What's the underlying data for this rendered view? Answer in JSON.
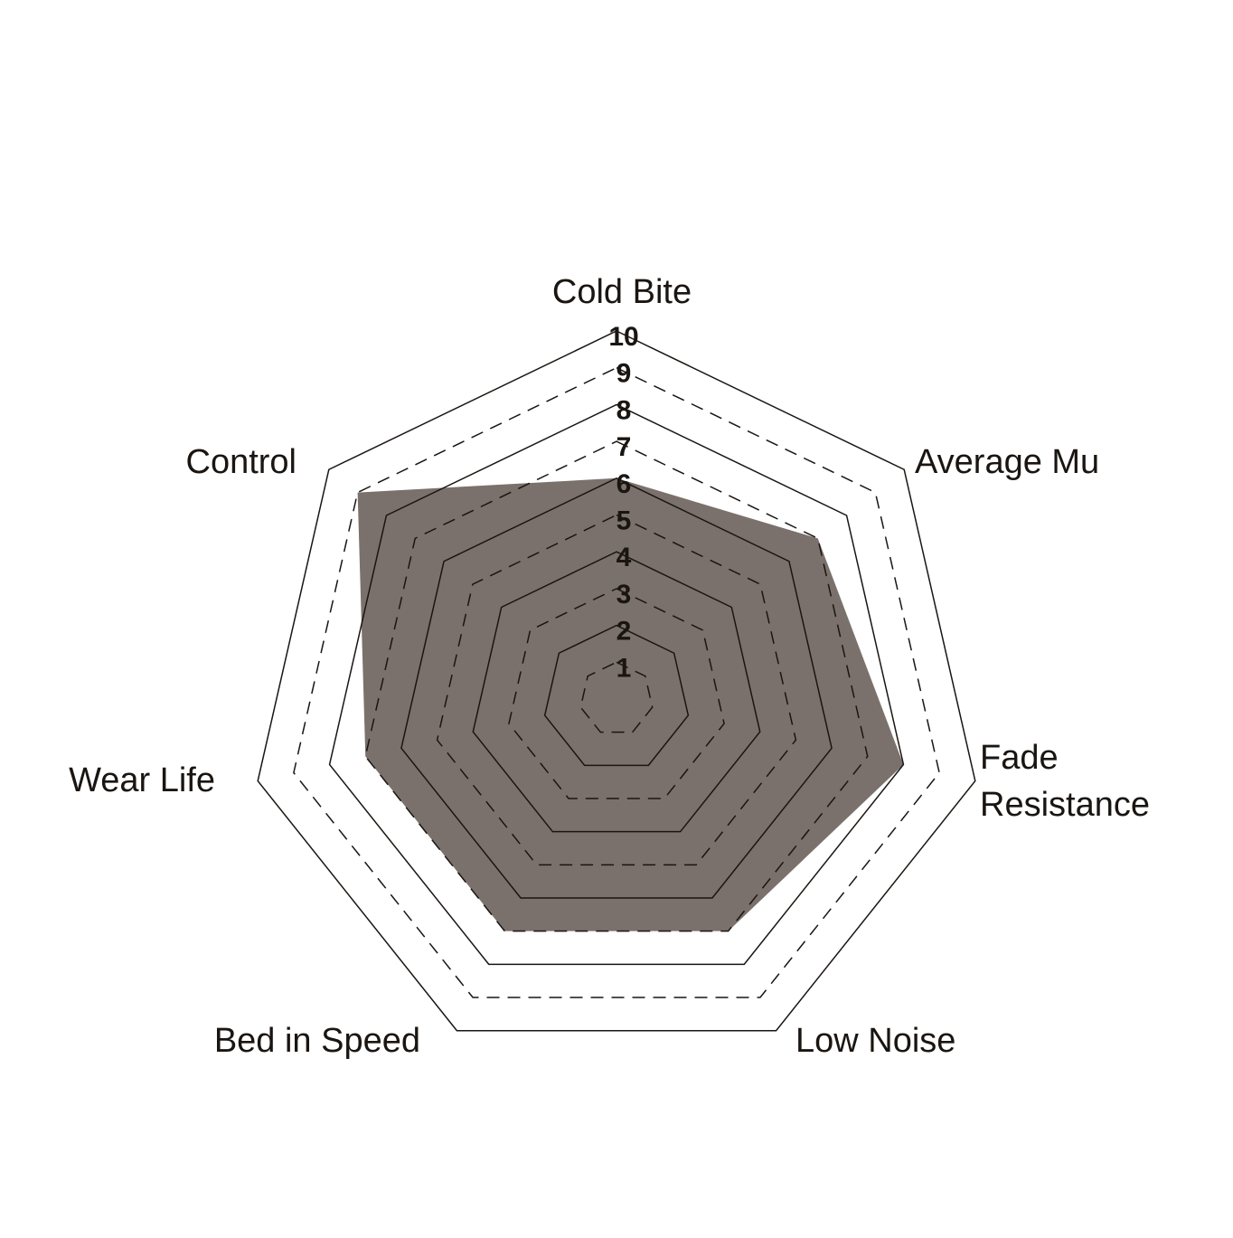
{
  "chart_data": {
    "type": "radar",
    "title": "",
    "axes": [
      "Cold Bite",
      "Average Mu",
      "Fade Resistance",
      "Low Noise",
      "Bed in Speed",
      "Wear Life",
      "Control"
    ],
    "axis_label_lines": [
      [
        "Cold Bite"
      ],
      [
        "Average Mu"
      ],
      [
        "Fade",
        "Resistance"
      ],
      [
        "Low Noise"
      ],
      [
        "Bed in Speed"
      ],
      [
        "Wear Life"
      ],
      [
        "Control"
      ]
    ],
    "series": [
      {
        "values": [
          6,
          7,
          8,
          7,
          7,
          7,
          9
        ]
      }
    ],
    "rlim": [
      0,
      10
    ],
    "ticks": [
      "1",
      "2",
      "3",
      "4",
      "5",
      "6",
      "7",
      "8",
      "9",
      "10"
    ],
    "grid": "solid on even rings, dashed on odd rings",
    "colors": {
      "fill": "#7a716c",
      "grid": "#1a1511",
      "background": "#ffffff"
    }
  }
}
